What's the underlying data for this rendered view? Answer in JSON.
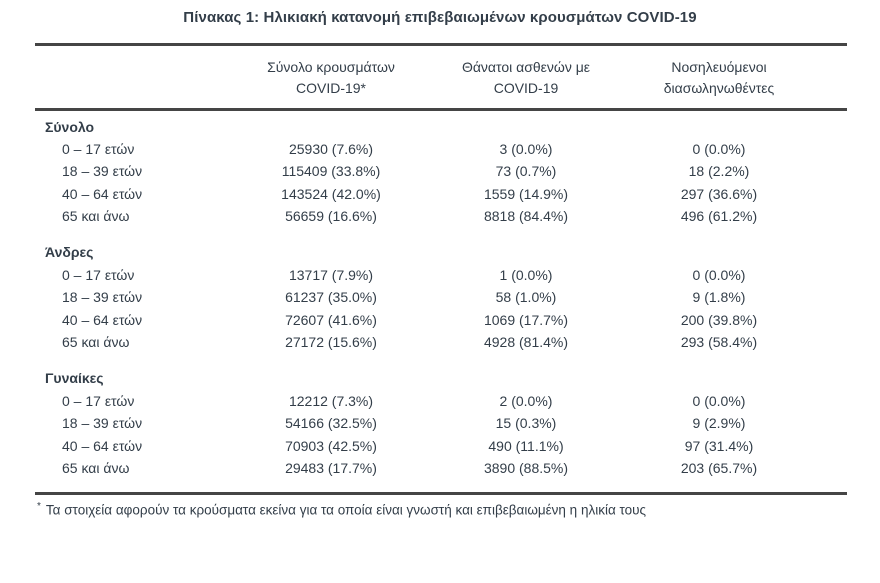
{
  "title": "Πίνακας 1: Ηλικιακή κατανομή επιβεβαιωμένων κρουσμάτων COVID-19",
  "table": {
    "column_headers": {
      "cases": {
        "line1": "Σύνολο κρουσμάτων",
        "line2": "COVID-19*"
      },
      "deaths": {
        "line1": "Θάνατοι ασθενών με",
        "line2": "COVID-19"
      },
      "intubated": {
        "line1": "Νοσηλευόμενοι",
        "line2": "διασωληνωθέντες"
      }
    },
    "sections": [
      {
        "label": "Σύνολο",
        "rows": [
          {
            "age": "0 – 17 ετών",
            "cases": "25930 (7.6%)",
            "deaths": "3 (0.0%)",
            "intubated": "0 (0.0%)"
          },
          {
            "age": "18 – 39 ετών",
            "cases": "115409 (33.8%)",
            "deaths": "73 (0.7%)",
            "intubated": "18 (2.2%)"
          },
          {
            "age": "40 – 64 ετών",
            "cases": "143524 (42.0%)",
            "deaths": "1559 (14.9%)",
            "intubated": "297 (36.6%)"
          },
          {
            "age": "65 και άνω",
            "cases": "56659 (16.6%)",
            "deaths": "8818 (84.4%)",
            "intubated": "496 (61.2%)"
          }
        ]
      },
      {
        "label": "Άνδρες",
        "rows": [
          {
            "age": "0 – 17 ετών",
            "cases": "13717 (7.9%)",
            "deaths": "1 (0.0%)",
            "intubated": "0 (0.0%)"
          },
          {
            "age": "18 – 39 ετών",
            "cases": "61237 (35.0%)",
            "deaths": "58 (1.0%)",
            "intubated": "9 (1.8%)"
          },
          {
            "age": "40 – 64 ετών",
            "cases": "72607 (41.6%)",
            "deaths": "1069 (17.7%)",
            "intubated": "200 (39.8%)"
          },
          {
            "age": "65 και άνω",
            "cases": "27172 (15.6%)",
            "deaths": "4928 (81.4%)",
            "intubated": "293 (58.4%)"
          }
        ]
      },
      {
        "label": "Γυναίκες",
        "rows": [
          {
            "age": "0 – 17 ετών",
            "cases": "12212 (7.3%)",
            "deaths": "2 (0.0%)",
            "intubated": "0 (0.0%)"
          },
          {
            "age": "18 – 39 ετών",
            "cases": "54166 (32.5%)",
            "deaths": "15 (0.3%)",
            "intubated": "9 (2.9%)"
          },
          {
            "age": "40 – 64 ετών",
            "cases": "70903 (42.5%)",
            "deaths": "490 (11.1%)",
            "intubated": "97 (31.4%)"
          },
          {
            "age": "65 και άνω",
            "cases": "29483 (17.7%)",
            "deaths": "3890 (88.5%)",
            "intubated": "203 (65.7%)"
          }
        ]
      }
    ],
    "footnote_marker": "*",
    "footnote_text": "Τα στοιχεία αφορούν τα κρούσματα εκείνα για τα οποία είναι γνωστή και επιβεβαιωμένη η ηλικία τους"
  },
  "colors": {
    "text": "#333e49",
    "rule": "#454545",
    "background": "#ffffff"
  }
}
